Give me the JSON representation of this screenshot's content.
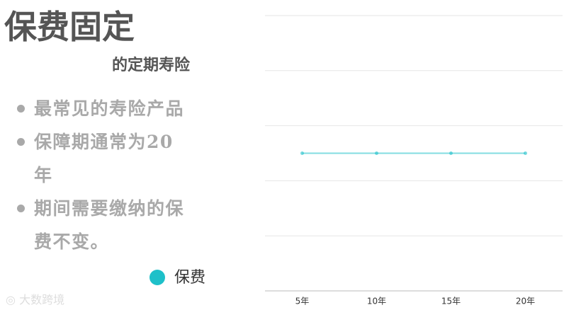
{
  "slide": {
    "title": "保费固定",
    "subtitle": "的定期寿险",
    "bullets": [
      "最常见的寿险产品",
      "保障期通常为20年",
      "期间需要缴纳的保费不变。"
    ],
    "watermark": "大数跨境"
  },
  "chart_data": {
    "type": "line",
    "categories": [
      "5年",
      "10年",
      "15年",
      "20年"
    ],
    "series": [
      {
        "name": "保费",
        "color": "#1ec0c9",
        "values": [
          2.5,
          2.5,
          2.5,
          2.5
        ]
      }
    ],
    "ylim": [
      0,
      5
    ],
    "yticks": [
      0,
      1,
      2,
      3,
      4,
      5
    ],
    "grid": true
  }
}
